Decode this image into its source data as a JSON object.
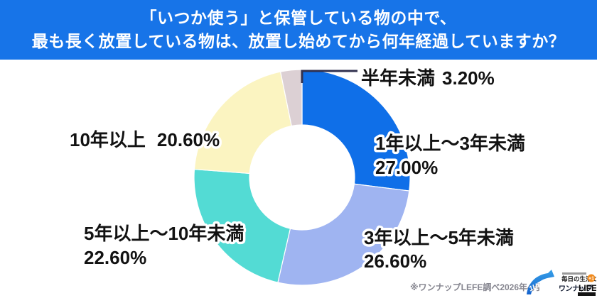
{
  "header": {
    "title_line1": "「いつか使う」と保管している物の中で、",
    "title_line2": "最も長く放置している物は、放置し始めてから何年経過していますか？",
    "bg_color": "#1774E8"
  },
  "chart_data": {
    "type": "pie",
    "style": "donut",
    "start_angle_deg": 0,
    "direction": "clockwise",
    "title": "「いつか使う」と保管している物の中で、最も長く放置している物は、放置し始めてから何年経過していますか？",
    "legend_position": "none",
    "callout_color": "#31314F",
    "slices": [
      {
        "label": "1年以上〜3年未満",
        "value": 27.0,
        "value_label": "27.00%",
        "color": "#0F6FE8"
      },
      {
        "label": "3年以上〜5年未満",
        "value": 26.6,
        "value_label": "26.60%",
        "color": "#9FB4F1"
      },
      {
        "label": "5年以上〜10年未満",
        "value": 22.6,
        "value_label": "22.60%",
        "color": "#53DBD4"
      },
      {
        "label": "10年以上",
        "value": 20.6,
        "value_label": "20.60%",
        "color": "#FBF4C1"
      },
      {
        "label": "半年未満",
        "value": 3.2,
        "value_label": "3.20%",
        "color": "#DCD0D4"
      }
    ]
  },
  "footer": {
    "source_note": "※ワンナップLEFE調べ2026年4月"
  },
  "logo": {
    "swoosh_text": "1UP",
    "tagline": "毎日の生活に",
    "badge": "+1",
    "brand_jp": "ワンナップ",
    "brand_en": "LIFE",
    "badge_color": "#F08A1E",
    "swoosh_color_top": "#36A0E8",
    "swoosh_color_bottom": "#1563CE"
  }
}
